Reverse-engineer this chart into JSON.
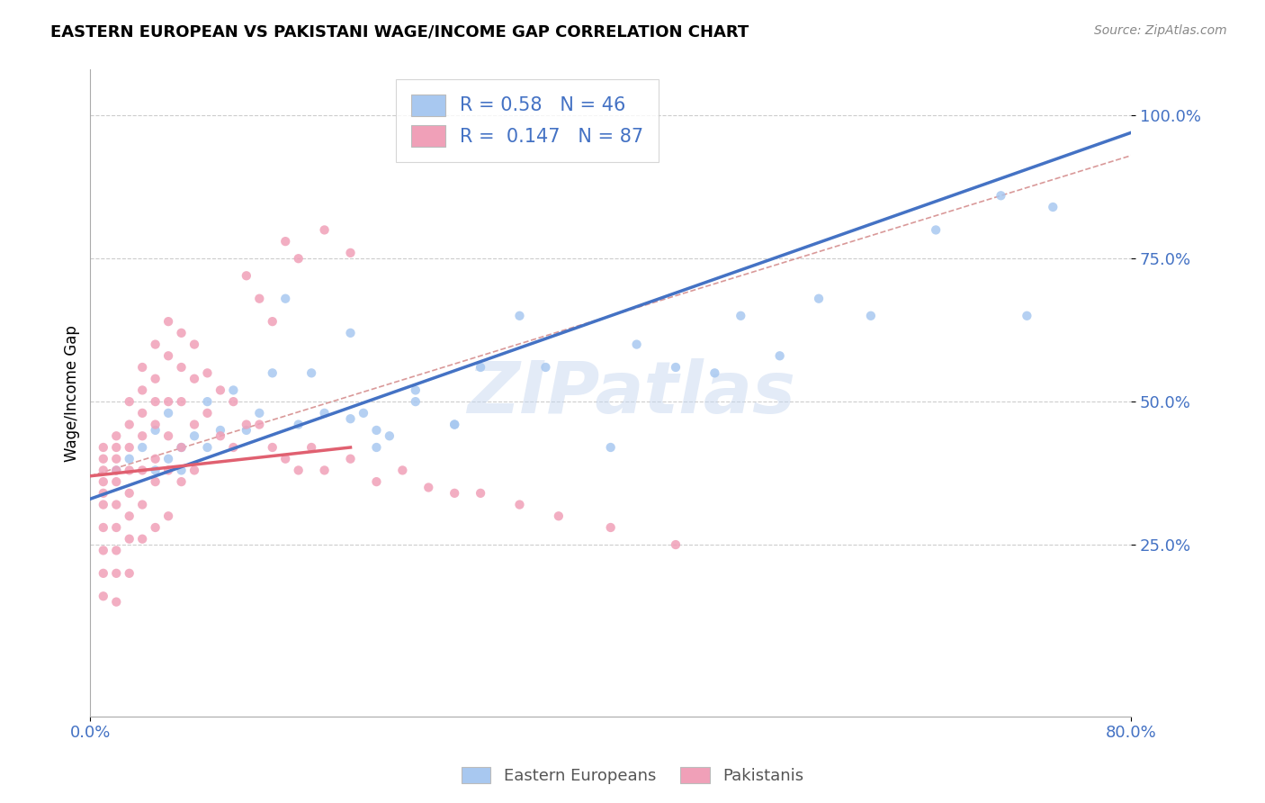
{
  "title": "EASTERN EUROPEAN VS PAKISTANI WAGE/INCOME GAP CORRELATION CHART",
  "source_text": "Source: ZipAtlas.com",
  "ylabel": "Wage/Income Gap",
  "xlim": [
    0.0,
    0.8
  ],
  "ylim": [
    -0.05,
    1.08
  ],
  "ytick_labels": [
    "25.0%",
    "50.0%",
    "75.0%",
    "100.0%"
  ],
  "ytick_values": [
    0.25,
    0.5,
    0.75,
    1.0
  ],
  "xtick_labels": [
    "0.0%",
    "80.0%"
  ],
  "xtick_values": [
    0.0,
    0.8
  ],
  "blue_R": 0.58,
  "blue_N": 46,
  "pink_R": 0.147,
  "pink_N": 87,
  "blue_color": "#A8C8F0",
  "pink_color": "#F0A0B8",
  "blue_line_color": "#4472C4",
  "pink_line_color": "#E06070",
  "ref_line_color": "#D08080",
  "legend_label_blue": "Eastern Europeans",
  "legend_label_pink": "Pakistanis",
  "watermark": "ZIPatlas",
  "blue_scatter_x": [
    0.02,
    0.03,
    0.04,
    0.05,
    0.05,
    0.06,
    0.06,
    0.07,
    0.07,
    0.08,
    0.09,
    0.09,
    0.1,
    0.11,
    0.12,
    0.13,
    0.14,
    0.15,
    0.16,
    0.17,
    0.18,
    0.2,
    0.21,
    0.22,
    0.23,
    0.25,
    0.28,
    0.3,
    0.33,
    0.2,
    0.22,
    0.25,
    0.28,
    0.35,
    0.4,
    0.42,
    0.45,
    0.48,
    0.5,
    0.53,
    0.56,
    0.6,
    0.65,
    0.7,
    0.72,
    0.74
  ],
  "blue_scatter_y": [
    0.38,
    0.4,
    0.42,
    0.38,
    0.45,
    0.4,
    0.48,
    0.38,
    0.42,
    0.44,
    0.42,
    0.5,
    0.45,
    0.52,
    0.45,
    0.48,
    0.55,
    0.68,
    0.46,
    0.55,
    0.48,
    0.47,
    0.48,
    0.42,
    0.44,
    0.5,
    0.46,
    0.56,
    0.65,
    0.62,
    0.45,
    0.52,
    0.46,
    0.56,
    0.42,
    0.6,
    0.56,
    0.55,
    0.65,
    0.58,
    0.68,
    0.65,
    0.8,
    0.86,
    0.65,
    0.84
  ],
  "pink_scatter_x": [
    0.01,
    0.01,
    0.01,
    0.01,
    0.01,
    0.01,
    0.01,
    0.01,
    0.01,
    0.01,
    0.02,
    0.02,
    0.02,
    0.02,
    0.02,
    0.02,
    0.02,
    0.02,
    0.02,
    0.02,
    0.03,
    0.03,
    0.03,
    0.03,
    0.03,
    0.03,
    0.03,
    0.03,
    0.04,
    0.04,
    0.04,
    0.04,
    0.04,
    0.04,
    0.04,
    0.05,
    0.05,
    0.05,
    0.05,
    0.05,
    0.05,
    0.05,
    0.06,
    0.06,
    0.06,
    0.06,
    0.06,
    0.06,
    0.07,
    0.07,
    0.07,
    0.07,
    0.07,
    0.08,
    0.08,
    0.08,
    0.08,
    0.09,
    0.09,
    0.1,
    0.1,
    0.11,
    0.11,
    0.12,
    0.13,
    0.14,
    0.15,
    0.16,
    0.17,
    0.18,
    0.2,
    0.22,
    0.24,
    0.26,
    0.28,
    0.3,
    0.33,
    0.36,
    0.4,
    0.45,
    0.12,
    0.13,
    0.14,
    0.15,
    0.16,
    0.18,
    0.2
  ],
  "pink_scatter_y": [
    0.42,
    0.4,
    0.38,
    0.36,
    0.34,
    0.32,
    0.28,
    0.24,
    0.2,
    0.16,
    0.44,
    0.42,
    0.4,
    0.38,
    0.36,
    0.32,
    0.28,
    0.24,
    0.2,
    0.15,
    0.5,
    0.46,
    0.42,
    0.38,
    0.34,
    0.3,
    0.26,
    0.2,
    0.56,
    0.52,
    0.48,
    0.44,
    0.38,
    0.32,
    0.26,
    0.6,
    0.54,
    0.5,
    0.46,
    0.4,
    0.36,
    0.28,
    0.64,
    0.58,
    0.5,
    0.44,
    0.38,
    0.3,
    0.62,
    0.56,
    0.5,
    0.42,
    0.36,
    0.6,
    0.54,
    0.46,
    0.38,
    0.55,
    0.48,
    0.52,
    0.44,
    0.5,
    0.42,
    0.46,
    0.46,
    0.42,
    0.4,
    0.38,
    0.42,
    0.38,
    0.4,
    0.36,
    0.38,
    0.35,
    0.34,
    0.34,
    0.32,
    0.3,
    0.28,
    0.25,
    0.72,
    0.68,
    0.64,
    0.78,
    0.75,
    0.8,
    0.76
  ]
}
